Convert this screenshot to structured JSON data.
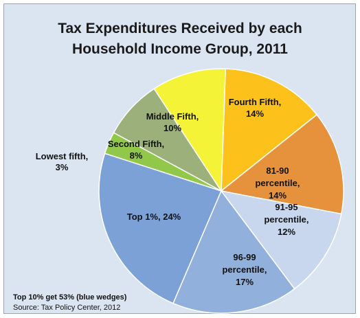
{
  "chart_data": {
    "type": "pie",
    "title_lines": [
      "Tax Expenditures Received by each",
      "Household Income Group, 2011"
    ],
    "slices": [
      {
        "label_lines": [
          "Fourth Fifth,",
          "14%"
        ],
        "value": 14,
        "color": "#fcc21b"
      },
      {
        "label_lines": [
          "81-90",
          "percentile,",
          "14%"
        ],
        "value": 14,
        "color": "#e6923c"
      },
      {
        "label_lines": [
          "91-95",
          "percentile,",
          "12%"
        ],
        "value": 12,
        "color": "#c8d7ee"
      },
      {
        "label_lines": [
          "96-99",
          "percentile,",
          "17%"
        ],
        "value": 17,
        "color": "#92b0dc"
      },
      {
        "label_lines": [
          "Top 1%, 24%"
        ],
        "value": 24,
        "color": "#7ba1d7"
      },
      {
        "label_lines": [
          "Lowest fifth,",
          "3%"
        ],
        "value": 3,
        "color": "#92c84a"
      },
      {
        "label_lines": [
          "Second Fifth,",
          "8%"
        ],
        "value": 8,
        "color": "#9bb07a"
      },
      {
        "label_lines": [
          "Middle Fifth,",
          "10%"
        ],
        "value": 10,
        "color": "#f5f337"
      }
    ],
    "note": "Top 10% get 53% (blue wedges)",
    "source": "Source: Tax Policy Center, 2012",
    "background_color": "#dbe4f1",
    "slice_border_color": "#ffffff"
  }
}
